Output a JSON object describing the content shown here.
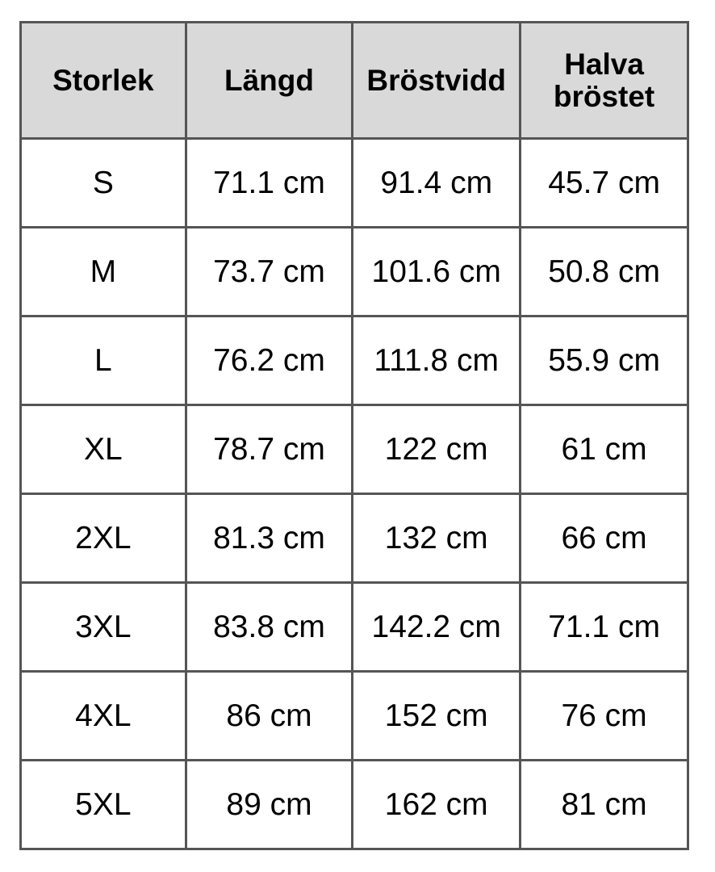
{
  "headers": [
    "Storlek",
    "Längd",
    "Bröstvidd",
    "Halva bröstet"
  ],
  "rows": [
    [
      "S",
      "71.1 cm",
      "91.4 cm",
      "45.7 cm"
    ],
    [
      "M",
      "73.7 cm",
      "101.6 cm",
      "50.8 cm"
    ],
    [
      "L",
      "76.2 cm",
      "111.8 cm",
      "55.9 cm"
    ],
    [
      "XL",
      "78.7 cm",
      "122 cm",
      "61 cm"
    ],
    [
      "2XL",
      "81.3 cm",
      "132 cm",
      "66 cm"
    ],
    [
      "3XL",
      "83.8 cm",
      "142.2 cm",
      "71.1 cm"
    ],
    [
      "4XL",
      "86 cm",
      "152 cm",
      "76 cm"
    ],
    [
      "5XL",
      "89 cm",
      "162 cm",
      "81 cm"
    ]
  ],
  "colors": {
    "header_bg": "#d9d9d9",
    "border": "#555555"
  }
}
